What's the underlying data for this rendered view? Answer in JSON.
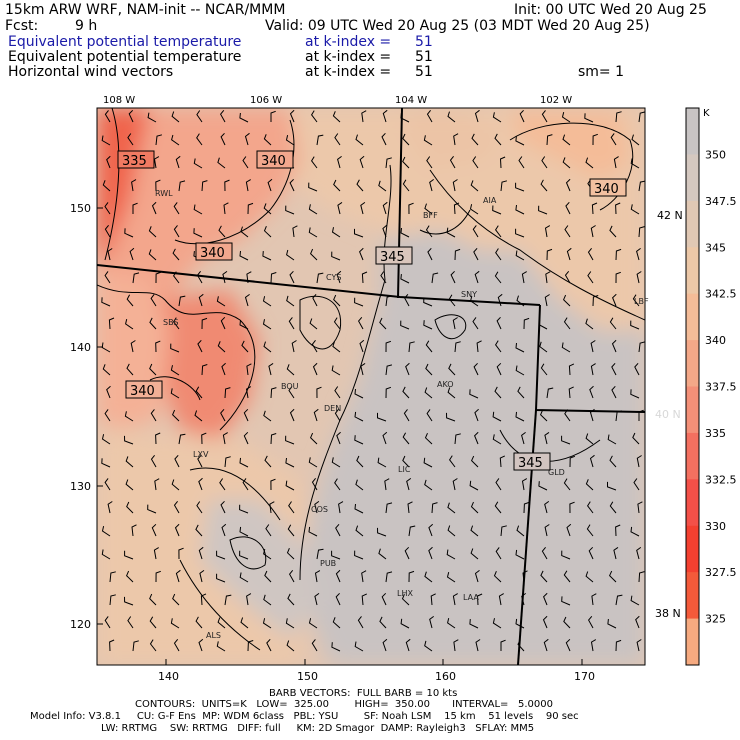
{
  "header": {
    "model_title": "15km ARW WRF, NAM-init -- NCAR/MMM",
    "init_time": "Init: 00 UTC Wed 20 Aug 25",
    "fcst_label": "Fcst:",
    "fcst_value": "9 h",
    "valid_time": "Valid: 09 UTC Wed 20 Aug 25 (03 MDT Wed 20 Aug 25)",
    "fields": [
      {
        "name": "Equivalent potential temperature",
        "level": "at k-index =",
        "value": "51",
        "color": "#1a1aa8"
      },
      {
        "name": "Equivalent potential temperature",
        "level": "at k-index =",
        "value": "51",
        "color": "#000000"
      },
      {
        "name": "Horizontal wind vectors",
        "level": "at k-index =",
        "value": "51",
        "color": "#000000"
      }
    ],
    "smoothing": "sm= 1"
  },
  "map": {
    "lon_labels": [
      "108 W",
      "106 W",
      "104 W",
      "102 W"
    ],
    "lat_labels": [
      "42 N",
      "40 N",
      "38 N"
    ],
    "x_ticks": [
      "140",
      "150",
      "160",
      "170"
    ],
    "y_ticks": [
      "150",
      "140",
      "130",
      "120"
    ],
    "cities": [
      "RWL",
      "BFF",
      "AIA",
      "CYS",
      "SNY",
      "SBS",
      "BOU",
      "AKO",
      "DEN",
      "LXV",
      "LIC",
      "GLD",
      "COS",
      "PUB",
      "LHX",
      "LAA",
      "ALS",
      "LBF"
    ],
    "contour_labels": [
      "335",
      "340",
      "340",
      "340",
      "345",
      "340",
      "345"
    ]
  },
  "colorbar": {
    "unit": "K",
    "labels": [
      "350",
      "347.5",
      "345",
      "342.5",
      "340",
      "337.5",
      "335",
      "332.5",
      "330",
      "327.5",
      "325"
    ],
    "colors": [
      "#c8c4c4",
      "#d4c8c0",
      "#e0c8b4",
      "#ecc8a8",
      "#f4bc98",
      "#f4a888",
      "#f49078",
      "#f47060",
      "#f45048",
      "#f44030",
      "#f45a3a",
      "#f6aa80"
    ]
  },
  "footer": {
    "barb_line": "BARB VECTORS:  FULL BARB = 10 kts",
    "contours_line": "CONTOURS:  UNITS=K   LOW=  325.00        HIGH=  350.00       INTERVAL=   5.0000",
    "model_info_line": "Model Info: V3.8.1     CU: G-F Ens  MP: WDM 6class   PBL: YSU        SF: Noah LSM    15 km    51 levels    90 sec",
    "physics_line": "LW: RRTMG    SW: RRTMG   DIFF: full     KM: 2D Smagor  DAMP: Rayleigh3   SFLAY: MM5"
  }
}
